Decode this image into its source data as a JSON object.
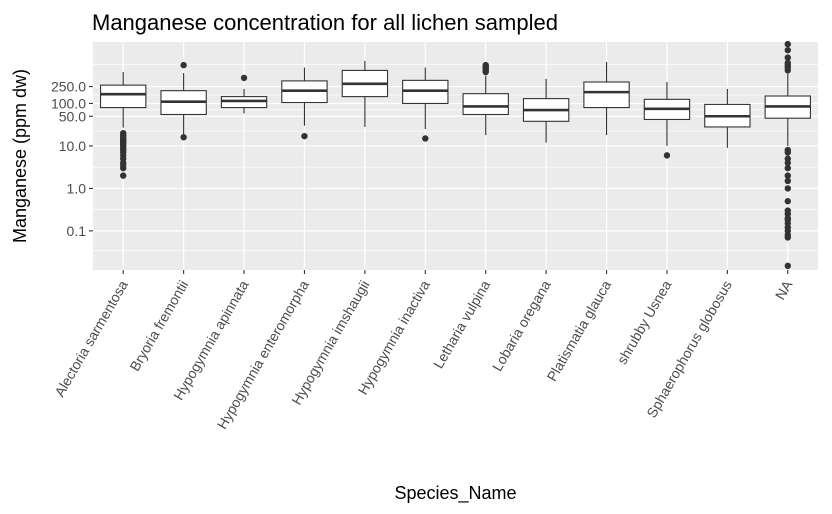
{
  "chart_data": {
    "type": "boxplot",
    "title": "Manganese concentration for all lichen sampled",
    "xlabel": "Species_Name",
    "ylabel": "Manganese (ppm dw)",
    "y_scale": "log10",
    "ylim": [
      0.012,
      2800
    ],
    "y_ticks": [
      {
        "value": 0.1,
        "label": "0.1"
      },
      {
        "value": 1,
        "label": "1.0"
      },
      {
        "value": 10,
        "label": "10.0"
      },
      {
        "value": 50,
        "label": "50.0"
      },
      {
        "value": 100,
        "label": "100.0"
      },
      {
        "value": 250,
        "label": "250.0"
      }
    ],
    "grid": true,
    "panel_color": "#ebebeb",
    "grid_color": "#ffffff",
    "box_fill": "#ffffff",
    "line_color": "#333333",
    "categories": [
      "Alectoria sarmentosa",
      "Bryoria fremontii",
      "Hypogymnia apinnata",
      "Hypogymnia enteromorpha",
      "Hypogymnia imshaugii",
      "Hypogymnia inactiva",
      "Letharia vulpina",
      "Lobaria oregana",
      "Platismatia glauca",
      "shrubby Usnea",
      "Sphaerophorus globosus",
      "NA"
    ],
    "boxes": [
      {
        "lower": 27,
        "q1": 80,
        "median": 165,
        "q3": 270,
        "upper": 550,
        "outliers": [
          2,
          3,
          3.5,
          4,
          5,
          6,
          7,
          8,
          9,
          10,
          11,
          12,
          13,
          14,
          15,
          16,
          18,
          20
        ]
      },
      {
        "lower": 15,
        "q1": 55,
        "median": 110,
        "q3": 200,
        "upper": 520,
        "outliers": [
          16,
          800
        ]
      },
      {
        "lower": 58,
        "q1": 80,
        "median": 115,
        "q3": 145,
        "upper": 220,
        "outliers": [
          400
        ]
      },
      {
        "lower": 30,
        "q1": 105,
        "median": 200,
        "q3": 340,
        "upper": 700,
        "outliers": [
          17
        ]
      },
      {
        "lower": 28,
        "q1": 145,
        "median": 290,
        "q3": 600,
        "upper": 1000,
        "outliers": []
      },
      {
        "lower": 25,
        "q1": 100,
        "median": 200,
        "q3": 350,
        "upper": 700,
        "outliers": [
          15
        ]
      },
      {
        "lower": 18,
        "q1": 55,
        "median": 85,
        "q3": 170,
        "upper": 450,
        "outliers": [
          550,
          600,
          650,
          700,
          750,
          800
        ]
      },
      {
        "lower": 12,
        "q1": 38,
        "median": 70,
        "q3": 130,
        "upper": 380,
        "outliers": []
      },
      {
        "lower": 18,
        "q1": 80,
        "median": 185,
        "q3": 320,
        "upper": 950,
        "outliers": []
      },
      {
        "lower": 10,
        "q1": 42,
        "median": 75,
        "q3": 125,
        "upper": 320,
        "outliers": [
          6
        ]
      },
      {
        "lower": 9,
        "q1": 28,
        "median": 50,
        "q3": 95,
        "upper": 220,
        "outliers": []
      },
      {
        "lower": 10,
        "q1": 45,
        "median": 85,
        "q3": 150,
        "upper": 500,
        "outliers": [
          0.015,
          0.07,
          0.08,
          0.1,
          0.12,
          0.15,
          0.18,
          0.2,
          0.25,
          0.3,
          0.5,
          1,
          1.5,
          2,
          3,
          4,
          5,
          7,
          8,
          600,
          700,
          800,
          900,
          1200,
          1800,
          2500
        ]
      }
    ]
  }
}
